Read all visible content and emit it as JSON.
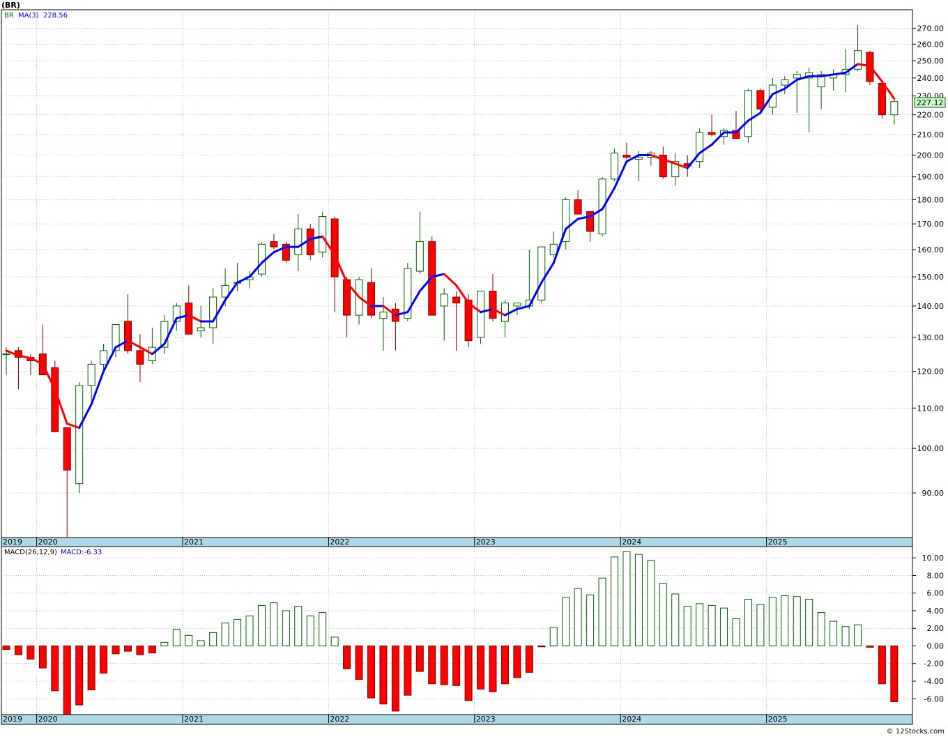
{
  "header": {
    "symbol": "(BR)",
    "price_legend_symbol": "BR",
    "price_legend_ma": "MA(3)",
    "price_legend_ma_value": "228.56",
    "macd_legend_label": "MACD(26,12,9)",
    "macd_legend_value": "MACD:-6.33",
    "last_price_tag": "227.12",
    "footer": "© 12Stocks.com"
  },
  "colors": {
    "up_candle": "#006400",
    "down_candle": "#ff0000",
    "ma_rising": "#0000ff",
    "ma_falling": "#ff0000",
    "timeline_band": "#add8e6",
    "grid": "#999999",
    "price_tag_fill": "#ccffcc"
  },
  "chart_data": [
    {
      "type": "candlestick",
      "name": "price",
      "scale": "log",
      "ylim": [
        81,
        282
      ],
      "y_ticks": [
        90,
        100,
        110,
        120,
        130,
        140,
        150,
        160,
        170,
        180,
        190,
        200,
        210,
        220,
        230,
        240,
        250,
        260,
        270
      ],
      "y_tick_labels": [
        "90.00",
        "100.00",
        "110.00",
        "120.00",
        "130.00",
        "140.00",
        "150.00",
        "160.00",
        "170.00",
        "180.00",
        "190.00",
        "200.00",
        "210.00",
        "220.00",
        "230.00",
        "240.00",
        "250.00",
        "260.00",
        "270.00"
      ],
      "x_axis_labels": [
        "2019",
        "2020",
        "2021",
        "2022",
        "2023",
        "2024",
        "2025"
      ],
      "x_axis_label_index": [
        0,
        3,
        15,
        27,
        39,
        51,
        63
      ],
      "grid": true,
      "candles": [
        {
          "o": 125,
          "h": 127,
          "l": 119,
          "c": 125
        },
        {
          "o": 126,
          "h": 127,
          "l": 115,
          "c": 124
        },
        {
          "o": 124,
          "h": 125,
          "l": 119,
          "c": 123
        },
        {
          "o": 125,
          "h": 134,
          "l": 119,
          "c": 119
        },
        {
          "o": 121,
          "h": 123,
          "l": 104,
          "c": 104
        },
        {
          "o": 105,
          "h": 105,
          "l": 81,
          "c": 95
        },
        {
          "o": 92,
          "h": 117,
          "l": 90,
          "c": 116
        },
        {
          "o": 116,
          "h": 123,
          "l": 112,
          "c": 122
        },
        {
          "o": 122,
          "h": 128,
          "l": 120,
          "c": 126
        },
        {
          "o": 126,
          "h": 134,
          "l": 124,
          "c": 134
        },
        {
          "o": 135,
          "h": 144,
          "l": 125,
          "c": 126
        },
        {
          "o": 126,
          "h": 131,
          "l": 117,
          "c": 122
        },
        {
          "o": 123,
          "h": 133,
          "l": 122,
          "c": 127
        },
        {
          "o": 127,
          "h": 137,
          "l": 125,
          "c": 135
        },
        {
          "o": 135,
          "h": 141,
          "l": 132,
          "c": 140
        },
        {
          "o": 141,
          "h": 147,
          "l": 131,
          "c": 131
        },
        {
          "o": 132,
          "h": 140,
          "l": 130,
          "c": 133
        },
        {
          "o": 133,
          "h": 146,
          "l": 128,
          "c": 143
        },
        {
          "o": 143,
          "h": 153,
          "l": 140,
          "c": 147
        },
        {
          "o": 148,
          "h": 155,
          "l": 145,
          "c": 148
        },
        {
          "o": 149,
          "h": 152,
          "l": 146,
          "c": 150
        },
        {
          "o": 151,
          "h": 163,
          "l": 150,
          "c": 162
        },
        {
          "o": 163,
          "h": 166,
          "l": 160,
          "c": 161
        },
        {
          "o": 162,
          "h": 163,
          "l": 155,
          "c": 156
        },
        {
          "o": 158,
          "h": 174,
          "l": 152,
          "c": 168
        },
        {
          "o": 168,
          "h": 170,
          "l": 156,
          "c": 158
        },
        {
          "o": 159,
          "h": 175,
          "l": 157,
          "c": 173
        },
        {
          "o": 172,
          "h": 173,
          "l": 138,
          "c": 150
        },
        {
          "o": 149,
          "h": 150,
          "l": 130,
          "c": 137
        },
        {
          "o": 137,
          "h": 150,
          "l": 134,
          "c": 149
        },
        {
          "o": 148,
          "h": 153,
          "l": 136,
          "c": 137
        },
        {
          "o": 136,
          "h": 143,
          "l": 126,
          "c": 138
        },
        {
          "o": 139,
          "h": 141,
          "l": 126,
          "c": 135
        },
        {
          "o": 136,
          "h": 155,
          "l": 135,
          "c": 153
        },
        {
          "o": 152,
          "h": 175,
          "l": 151,
          "c": 163
        },
        {
          "o": 163,
          "h": 165,
          "l": 137,
          "c": 137
        },
        {
          "o": 140,
          "h": 146,
          "l": 129,
          "c": 144
        },
        {
          "o": 143,
          "h": 145,
          "l": 126,
          "c": 141
        },
        {
          "o": 142,
          "h": 144,
          "l": 127,
          "c": 129
        },
        {
          "o": 130,
          "h": 145,
          "l": 128,
          "c": 145
        },
        {
          "o": 145,
          "h": 151,
          "l": 135,
          "c": 136
        },
        {
          "o": 135,
          "h": 142,
          "l": 130,
          "c": 141
        },
        {
          "o": 140,
          "h": 141,
          "l": 137,
          "c": 141
        },
        {
          "o": 140,
          "h": 160,
          "l": 139,
          "c": 142
        },
        {
          "o": 142,
          "h": 161,
          "l": 141,
          "c": 161
        },
        {
          "o": 158,
          "h": 167,
          "l": 157,
          "c": 162
        },
        {
          "o": 163,
          "h": 181,
          "l": 160,
          "c": 180
        },
        {
          "o": 180,
          "h": 184,
          "l": 174,
          "c": 174
        },
        {
          "o": 175,
          "h": 175,
          "l": 163,
          "c": 167
        },
        {
          "o": 166,
          "h": 190,
          "l": 165,
          "c": 189
        },
        {
          "o": 189,
          "h": 203,
          "l": 188,
          "c": 201
        },
        {
          "o": 200,
          "h": 206,
          "l": 198,
          "c": 199
        },
        {
          "o": 198,
          "h": 202,
          "l": 188,
          "c": 199
        },
        {
          "o": 199,
          "h": 202,
          "l": 195,
          "c": 201
        },
        {
          "o": 200,
          "h": 204,
          "l": 189,
          "c": 190
        },
        {
          "o": 190,
          "h": 201,
          "l": 186,
          "c": 197
        },
        {
          "o": 196,
          "h": 200,
          "l": 190,
          "c": 195
        },
        {
          "o": 197,
          "h": 213,
          "l": 194,
          "c": 211
        },
        {
          "o": 211,
          "h": 220,
          "l": 209,
          "c": 210
        },
        {
          "o": 209,
          "h": 213,
          "l": 205,
          "c": 212
        },
        {
          "o": 212,
          "h": 222,
          "l": 208,
          "c": 208
        },
        {
          "o": 209,
          "h": 234,
          "l": 206,
          "c": 233
        },
        {
          "o": 233,
          "h": 234,
          "l": 221,
          "c": 223
        },
        {
          "o": 224,
          "h": 240,
          "l": 220,
          "c": 236
        },
        {
          "o": 236,
          "h": 241,
          "l": 231,
          "c": 239
        },
        {
          "o": 240,
          "h": 244,
          "l": 221,
          "c": 242
        },
        {
          "o": 240,
          "h": 246,
          "l": 211,
          "c": 243
        },
        {
          "o": 235,
          "h": 244,
          "l": 223,
          "c": 242
        },
        {
          "o": 240,
          "h": 245,
          "l": 233,
          "c": 242
        },
        {
          "o": 242,
          "h": 257,
          "l": 232,
          "c": 245
        },
        {
          "o": 245,
          "h": 272,
          "l": 244,
          "c": 256
        },
        {
          "o": 255,
          "h": 256,
          "l": 236,
          "c": 238
        },
        {
          "o": 237,
          "h": 238,
          "l": 218,
          "c": 220
        },
        {
          "o": 220,
          "h": 228,
          "l": 215,
          "c": 227
        }
      ],
      "ma3": [
        126,
        124.5,
        123.8,
        122,
        115,
        106,
        105,
        111,
        120,
        127,
        129,
        127,
        125,
        128,
        136,
        137,
        135,
        135,
        142,
        148,
        150,
        155,
        159,
        161,
        161,
        164,
        165,
        158,
        148,
        143,
        140,
        140,
        137,
        138,
        145,
        150,
        151,
        147,
        141,
        138,
        139,
        137,
        139,
        140,
        148,
        155,
        168,
        172,
        173,
        176,
        185,
        197,
        200,
        200,
        198,
        196,
        194,
        201,
        205,
        211,
        211,
        217,
        221,
        231,
        234,
        239,
        241,
        241,
        242,
        243,
        248,
        247,
        238,
        228.56
      ]
    },
    {
      "type": "bar",
      "name": "MACD(26,12,9)",
      "ylim": [
        -7.8,
        11.2
      ],
      "y_ticks": [
        -6,
        -4,
        -2,
        0,
        2,
        4,
        6,
        8,
        10
      ],
      "y_tick_labels": [
        "-6.00",
        "-4.00",
        "-2.00",
        "0.00",
        "2.00",
        "4.00",
        "6.00",
        "8.00",
        "10.00"
      ],
      "x_axis_labels": [
        "2019",
        "2020",
        "2021",
        "2022",
        "2023",
        "2024",
        "2025"
      ],
      "values": [
        -0.4,
        -1.0,
        -1.5,
        -2.5,
        -5.1,
        -7.9,
        -6.7,
        -5.0,
        -3.1,
        -0.9,
        -0.6,
        -1.0,
        -0.8,
        0.4,
        1.9,
        1.2,
        0.6,
        1.5,
        2.6,
        3.0,
        3.4,
        4.6,
        4.9,
        4.0,
        4.5,
        3.4,
        3.8,
        1.0,
        -2.6,
        -3.8,
        -5.9,
        -6.6,
        -7.4,
        -5.6,
        -2.9,
        -4.3,
        -4.4,
        -4.5,
        -6.2,
        -4.9,
        -5.2,
        -4.3,
        -3.6,
        -3.0,
        -0.1,
        2.1,
        5.5,
        6.5,
        5.8,
        7.7,
        10.1,
        10.7,
        10.4,
        9.7,
        7.1,
        5.9,
        4.5,
        4.8,
        4.6,
        4.3,
        3.1,
        5.3,
        4.7,
        5.5,
        5.7,
        5.6,
        5.3,
        3.8,
        2.8,
        2.2,
        2.4,
        -0.15,
        -4.3,
        -6.33
      ]
    }
  ]
}
